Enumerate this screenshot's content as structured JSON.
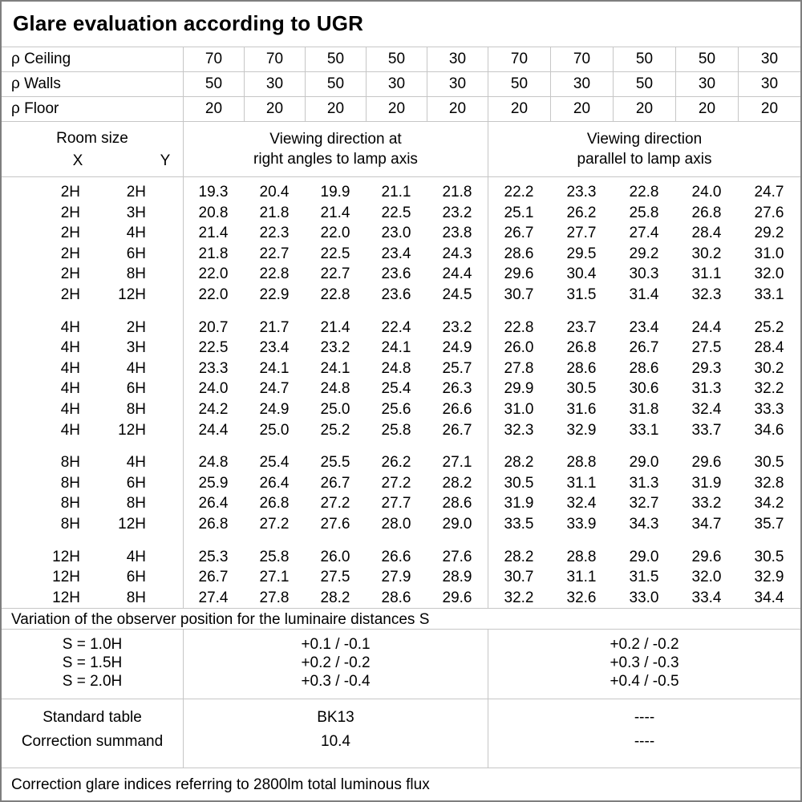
{
  "title": "Glare evaluation according to UGR",
  "header": {
    "rho_rows": [
      {
        "label": "ρ Ceiling",
        "values": [
          "70",
          "70",
          "50",
          "50",
          "30",
          "70",
          "70",
          "50",
          "50",
          "30"
        ]
      },
      {
        "label": "ρ Walls",
        "values": [
          "50",
          "30",
          "50",
          "30",
          "30",
          "50",
          "30",
          "50",
          "30",
          "30"
        ]
      },
      {
        "label": "ρ Floor",
        "values": [
          "20",
          "20",
          "20",
          "20",
          "20",
          "20",
          "20",
          "20",
          "20",
          "20"
        ]
      }
    ],
    "room_size_label": "Room size",
    "x_label": "X",
    "y_label": "Y",
    "group1": [
      "Viewing direction at",
      "right angles to lamp axis"
    ],
    "group2": [
      "Viewing direction",
      "parallel to lamp axis"
    ]
  },
  "data_groups": [
    {
      "rows": [
        {
          "x": "2H",
          "y": "2H",
          "values": [
            "19.3",
            "20.4",
            "19.9",
            "21.1",
            "21.8",
            "22.2",
            "23.3",
            "22.8",
            "24.0",
            "24.7"
          ]
        },
        {
          "x": "2H",
          "y": "3H",
          "values": [
            "20.8",
            "21.8",
            "21.4",
            "22.5",
            "23.2",
            "25.1",
            "26.2",
            "25.8",
            "26.8",
            "27.6"
          ]
        },
        {
          "x": "2H",
          "y": "4H",
          "values": [
            "21.4",
            "22.3",
            "22.0",
            "23.0",
            "23.8",
            "26.7",
            "27.7",
            "27.4",
            "28.4",
            "29.2"
          ]
        },
        {
          "x": "2H",
          "y": "6H",
          "values": [
            "21.8",
            "22.7",
            "22.5",
            "23.4",
            "24.3",
            "28.6",
            "29.5",
            "29.2",
            "30.2",
            "31.0"
          ]
        },
        {
          "x": "2H",
          "y": "8H",
          "values": [
            "22.0",
            "22.8",
            "22.7",
            "23.6",
            "24.4",
            "29.6",
            "30.4",
            "30.3",
            "31.1",
            "32.0"
          ]
        },
        {
          "x": "2H",
          "y": "12H",
          "values": [
            "22.0",
            "22.9",
            "22.8",
            "23.6",
            "24.5",
            "30.7",
            "31.5",
            "31.4",
            "32.3",
            "33.1"
          ]
        }
      ]
    },
    {
      "rows": [
        {
          "x": "4H",
          "y": "2H",
          "values": [
            "20.7",
            "21.7",
            "21.4",
            "22.4",
            "23.2",
            "22.8",
            "23.7",
            "23.4",
            "24.4",
            "25.2"
          ]
        },
        {
          "x": "4H",
          "y": "3H",
          "values": [
            "22.5",
            "23.4",
            "23.2",
            "24.1",
            "24.9",
            "26.0",
            "26.8",
            "26.7",
            "27.5",
            "28.4"
          ]
        },
        {
          "x": "4H",
          "y": "4H",
          "values": [
            "23.3",
            "24.1",
            "24.1",
            "24.8",
            "25.7",
            "27.8",
            "28.6",
            "28.6",
            "29.3",
            "30.2"
          ]
        },
        {
          "x": "4H",
          "y": "6H",
          "values": [
            "24.0",
            "24.7",
            "24.8",
            "25.4",
            "26.3",
            "29.9",
            "30.5",
            "30.6",
            "31.3",
            "32.2"
          ]
        },
        {
          "x": "4H",
          "y": "8H",
          "values": [
            "24.2",
            "24.9",
            "25.0",
            "25.6",
            "26.6",
            "31.0",
            "31.6",
            "31.8",
            "32.4",
            "33.3"
          ]
        },
        {
          "x": "4H",
          "y": "12H",
          "values": [
            "24.4",
            "25.0",
            "25.2",
            "25.8",
            "26.7",
            "32.3",
            "32.9",
            "33.1",
            "33.7",
            "34.6"
          ]
        }
      ]
    },
    {
      "rows": [
        {
          "x": "8H",
          "y": "4H",
          "values": [
            "24.8",
            "25.4",
            "25.5",
            "26.2",
            "27.1",
            "28.2",
            "28.8",
            "29.0",
            "29.6",
            "30.5"
          ]
        },
        {
          "x": "8H",
          "y": "6H",
          "values": [
            "25.9",
            "26.4",
            "26.7",
            "27.2",
            "28.2",
            "30.5",
            "31.1",
            "31.3",
            "31.9",
            "32.8"
          ]
        },
        {
          "x": "8H",
          "y": "8H",
          "values": [
            "26.4",
            "26.8",
            "27.2",
            "27.7",
            "28.6",
            "31.9",
            "32.4",
            "32.7",
            "33.2",
            "34.2"
          ]
        },
        {
          "x": "8H",
          "y": "12H",
          "values": [
            "26.8",
            "27.2",
            "27.6",
            "28.0",
            "29.0",
            "33.5",
            "33.9",
            "34.3",
            "34.7",
            "35.7"
          ]
        }
      ]
    },
    {
      "rows": [
        {
          "x": "12H",
          "y": "4H",
          "values": [
            "25.3",
            "25.8",
            "26.0",
            "26.6",
            "27.6",
            "28.2",
            "28.8",
            "29.0",
            "29.6",
            "30.5"
          ]
        },
        {
          "x": "12H",
          "y": "6H",
          "values": [
            "26.7",
            "27.1",
            "27.5",
            "27.9",
            "28.9",
            "30.7",
            "31.1",
            "31.5",
            "32.0",
            "32.9"
          ]
        },
        {
          "x": "12H",
          "y": "8H",
          "values": [
            "27.4",
            "27.8",
            "28.2",
            "28.6",
            "29.6",
            "32.2",
            "32.6",
            "33.0",
            "33.4",
            "34.4"
          ]
        }
      ]
    }
  ],
  "variation_note": "Variation of the observer position for the luminaire distances S",
  "s_section": {
    "labels": [
      "S = 1.0H",
      "S = 1.5H",
      "S = 2.0H"
    ],
    "right_angle_values": [
      "+0.1 / -0.1",
      "+0.2 / -0.2",
      "+0.3 / -0.4"
    ],
    "parallel_values": [
      "+0.2 / -0.2",
      "+0.3 / -0.3",
      "+0.4 / -0.5"
    ]
  },
  "summary": {
    "labels": [
      "Standard table",
      "Correction summand"
    ],
    "right_angle_values": [
      "BK13",
      "10.4"
    ],
    "parallel_values": [
      "----",
      "----"
    ]
  },
  "footer_note": "Correction glare indices referring to 2800lm total luminous flux",
  "colors": {
    "grid_line": "#c6c6c6",
    "frame": "#7f7f7f",
    "text": "#000000",
    "background": "#ffffff"
  }
}
